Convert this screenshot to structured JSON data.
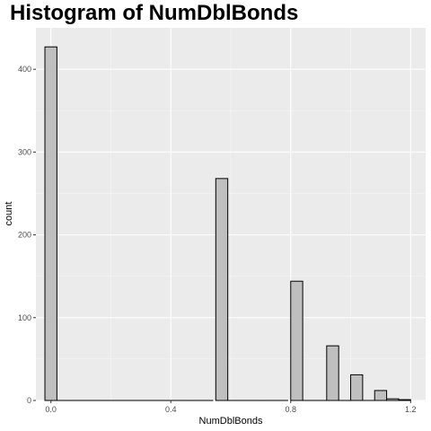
{
  "chart_data": {
    "type": "bar",
    "title": "Histogram of NumDblBonds",
    "xlabel": "NumDblBonds",
    "ylabel": "count",
    "xlim": [
      -0.05,
      1.25
    ],
    "ylim": [
      0,
      450
    ],
    "x_ticks": [
      0.0,
      0.4,
      0.8,
      1.2
    ],
    "x_tick_labels": [
      "0.0",
      "0.4",
      "0.8",
      "1.2"
    ],
    "y_ticks": [
      0,
      100,
      200,
      300,
      400
    ],
    "y_tick_labels": [
      "0",
      "100",
      "200",
      "300",
      "400"
    ],
    "x_minor_ticks": [
      0.2,
      0.6,
      1.0
    ],
    "y_minor_ticks": [
      50,
      150,
      250,
      350
    ],
    "grid": true,
    "bin_width": 0.04,
    "bins": [
      {
        "x": 0.0,
        "count": 427
      },
      {
        "x": 0.04,
        "count": 0
      },
      {
        "x": 0.08,
        "count": 0
      },
      {
        "x": 0.12,
        "count": 0
      },
      {
        "x": 0.16,
        "count": 0
      },
      {
        "x": 0.2,
        "count": 0
      },
      {
        "x": 0.24,
        "count": 0
      },
      {
        "x": 0.28,
        "count": 0
      },
      {
        "x": 0.32,
        "count": 0
      },
      {
        "x": 0.36,
        "count": 0
      },
      {
        "x": 0.4,
        "count": 0
      },
      {
        "x": 0.44,
        "count": 0
      },
      {
        "x": 0.48,
        "count": 0
      },
      {
        "x": 0.52,
        "count": 0
      },
      {
        "x": 0.57,
        "count": 268
      },
      {
        "x": 0.61,
        "count": 0
      },
      {
        "x": 0.65,
        "count": 0
      },
      {
        "x": 0.69,
        "count": 0
      },
      {
        "x": 0.73,
        "count": 0
      },
      {
        "x": 0.77,
        "count": 0
      },
      {
        "x": 0.82,
        "count": 144
      },
      {
        "x": 0.86,
        "count": 0
      },
      {
        "x": 0.9,
        "count": 0
      },
      {
        "x": 0.94,
        "count": 66
      },
      {
        "x": 0.98,
        "count": 0
      },
      {
        "x": 1.02,
        "count": 31
      },
      {
        "x": 1.06,
        "count": 0
      },
      {
        "x": 1.1,
        "count": 12
      },
      {
        "x": 1.14,
        "count": 2
      },
      {
        "x": 1.18,
        "count": 1
      }
    ],
    "colors": {
      "panel": "#ebebeb",
      "grid_major": "#ffffff",
      "bar_fill": "#bfbfbf",
      "bar_stroke": "#000000"
    }
  }
}
